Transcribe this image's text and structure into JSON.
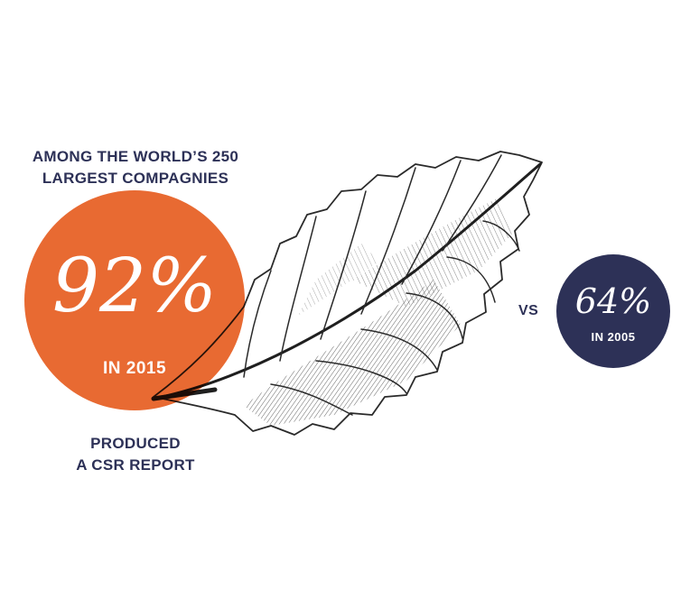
{
  "header": {
    "line1": "AMONG THE WORLD’S 250",
    "line2": "LARGEST COMPAGNIES"
  },
  "main_stat": {
    "percent": "92%",
    "year_label": "IN 2015",
    "color": "#e86a32"
  },
  "footer": {
    "line1": "PRODUCED",
    "line2": "A CSR REPORT"
  },
  "comparison": {
    "vs_label": "VS",
    "percent": "64%",
    "year_label": "IN 2005",
    "color": "#2d3157"
  },
  "illustration": {
    "icon": "leaf-illustration"
  }
}
